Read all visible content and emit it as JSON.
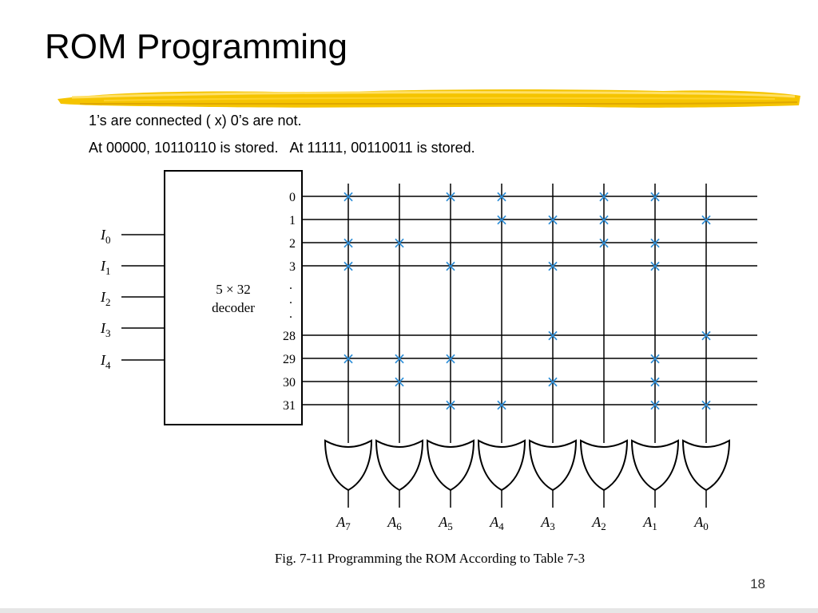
{
  "slide": {
    "title": "ROM Programming",
    "page_number": "18",
    "bullets": [
      "1’s are connected ( x) 0’s are not.",
      "At 00000, 10110110 is stored.   At 11111, 00110011 is stored."
    ],
    "accent_color": "#f5c400"
  },
  "diagram": {
    "decoder_label": [
      "5 × 32",
      "decoder"
    ],
    "inputs": [
      {
        "letter": "I",
        "sub": "0"
      },
      {
        "letter": "I",
        "sub": "1"
      },
      {
        "letter": "I",
        "sub": "2"
      },
      {
        "letter": "I",
        "sub": "3"
      },
      {
        "letter": "I",
        "sub": "4"
      }
    ],
    "rows": [
      "0",
      "1",
      "2",
      "3",
      "28",
      "29",
      "30",
      "31"
    ],
    "ellipsis": ".",
    "outputs": [
      {
        "letter": "A",
        "sub": "7"
      },
      {
        "letter": "A",
        "sub": "6"
      },
      {
        "letter": "A",
        "sub": "5"
      },
      {
        "letter": "A",
        "sub": "4"
      },
      {
        "letter": "A",
        "sub": "3"
      },
      {
        "letter": "A",
        "sub": "2"
      },
      {
        "letter": "A",
        "sub": "1"
      },
      {
        "letter": "A",
        "sub": "0"
      }
    ],
    "stored_bits": [
      "10110110",
      "00011101",
      "11000110",
      "10101010",
      "00001001",
      "11100010",
      "01001010",
      "00110011"
    ],
    "mark_symbol": "×",
    "mark_color": "#2f8fd8",
    "caption": "Fig. 7-11  Programming the ROM According to Table 7-3"
  }
}
